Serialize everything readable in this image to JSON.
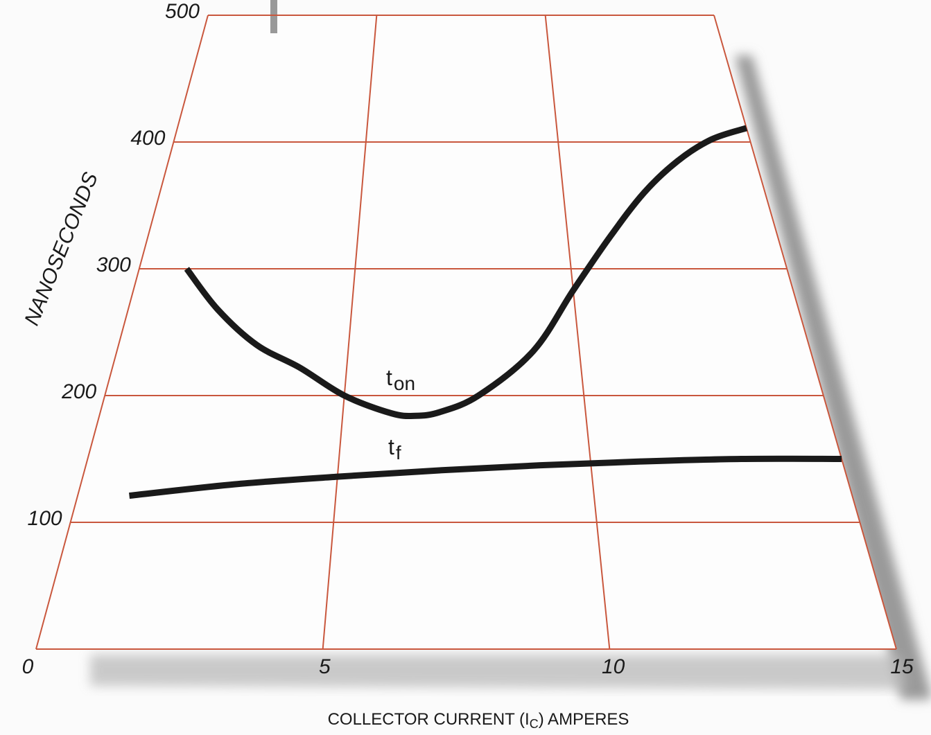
{
  "chart_data": {
    "type": "line",
    "xlabel": [
      "COLLECTOR CURRENT (I",
      "C",
      ") AMPERES"
    ],
    "ylabel": "NANOSECONDS",
    "xlim": [
      0,
      15
    ],
    "xticks": [
      0,
      5,
      10,
      15
    ],
    "ylim": [
      0,
      500
    ],
    "yticks": [
      0,
      100,
      200,
      300,
      400,
      500
    ],
    "grid": true,
    "grid_color": "#c9573d",
    "series": [
      {
        "name": "t",
        "subscript": "on",
        "color": "#1a1a1a",
        "x": [
          1.1,
          2,
          3,
          4,
          5,
          6,
          6.5,
          7,
          7.8,
          9,
          10,
          11,
          12,
          13,
          14,
          15
        ],
        "values": [
          300,
          268,
          240,
          222,
          200,
          186,
          184,
          187,
          200,
          235,
          283,
          325,
          360,
          385,
          402,
          411
        ]
      },
      {
        "name": "t",
        "subscript": "f",
        "color": "#1a1a1a",
        "x": [
          1,
          3,
          5,
          7,
          9,
          11,
          13,
          15
        ],
        "values": [
          121,
          130,
          136,
          141,
          145,
          148,
          150,
          150
        ]
      }
    ]
  }
}
